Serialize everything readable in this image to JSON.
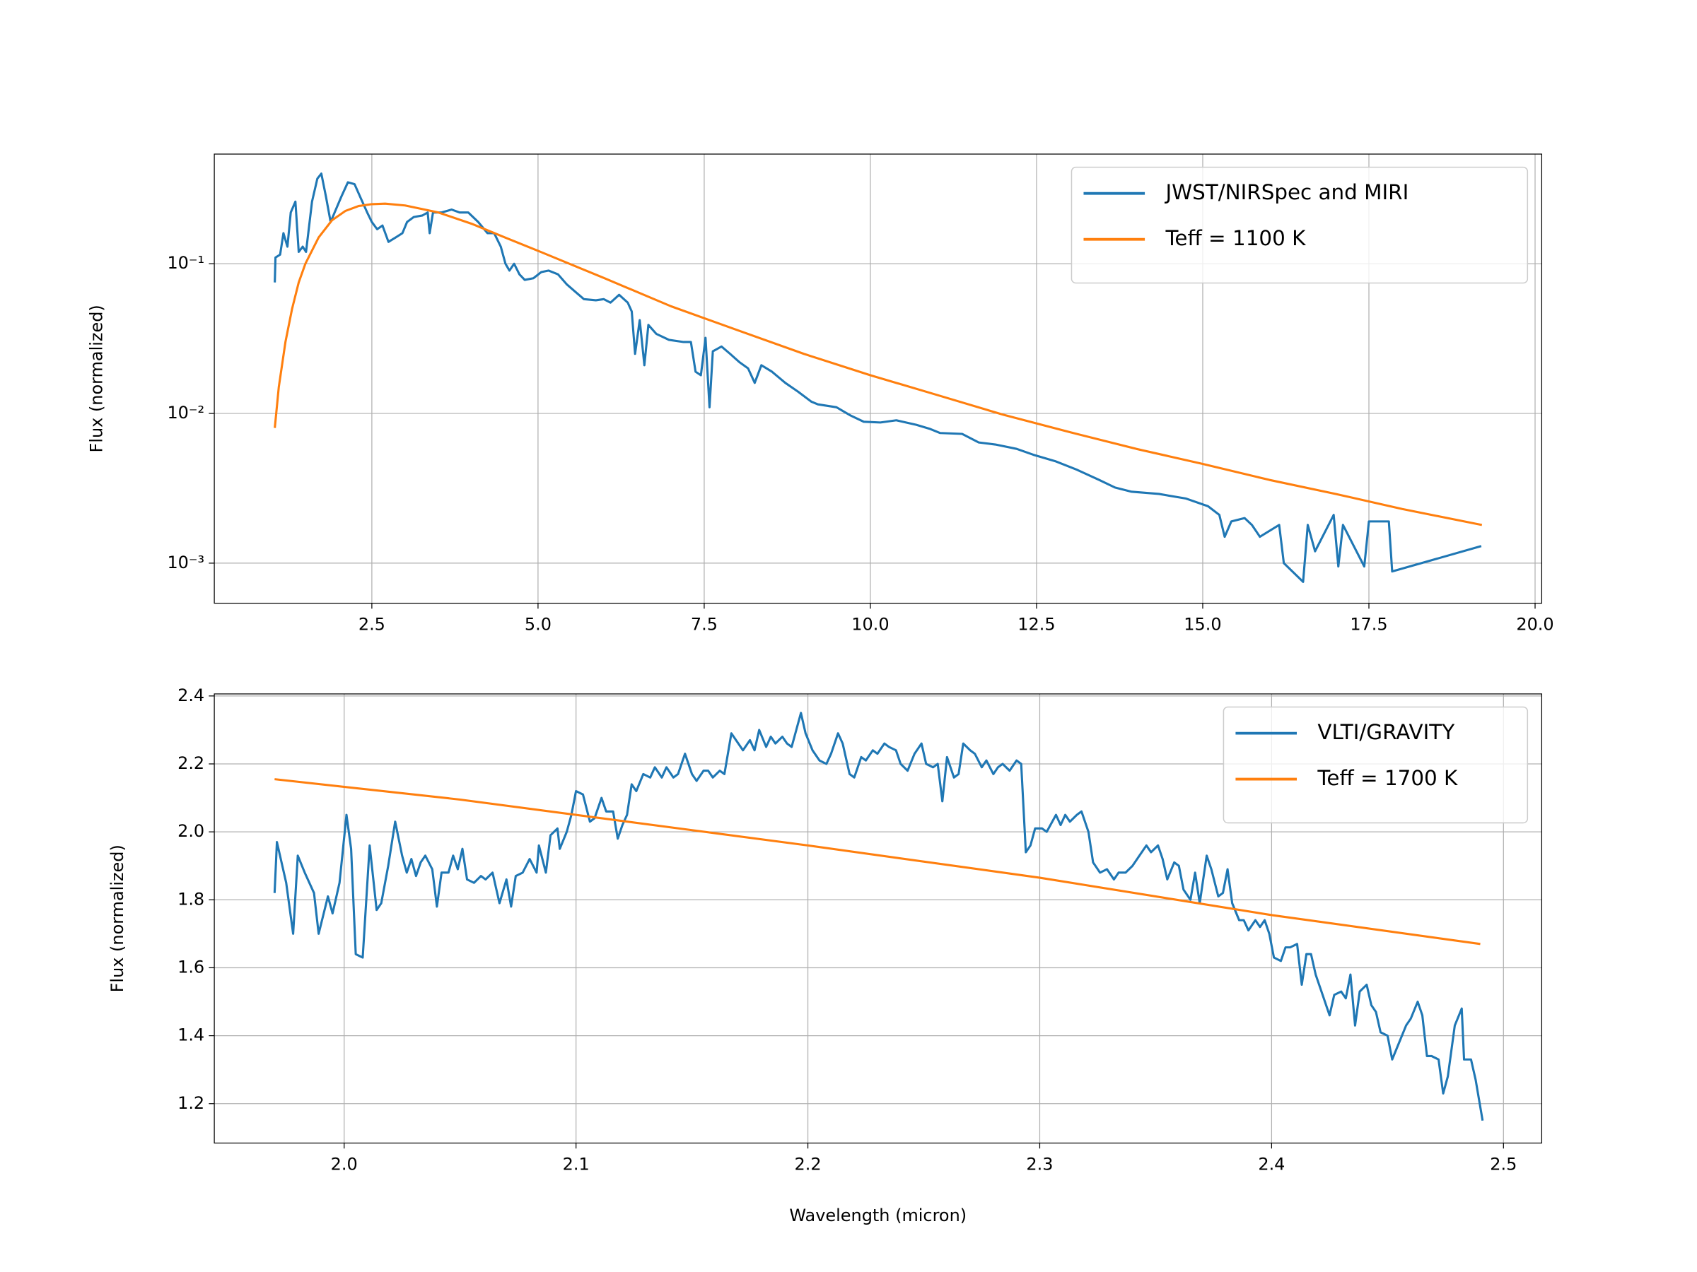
{
  "chart_data": [
    {
      "type": "line",
      "ylabel": "Flux (normalized)",
      "log_y": true,
      "grid": true,
      "legend": "upper right",
      "xlim": [
        0.13,
        20.1
      ],
      "ylim": [
        0.00054,
        0.54
      ],
      "xticks": [
        2.5,
        {
          "value": 5,
          "label": "5.0"
        },
        7.5,
        {
          "value": 10,
          "label": "10.0"
        },
        12.5,
        {
          "value": 15,
          "label": "15.0"
        },
        17.5,
        {
          "value": 20,
          "label": "20.0"
        }
      ],
      "yticks": [
        {
          "value": 0.001,
          "label": "10⁻³"
        },
        {
          "value": 0.01,
          "label": "10⁻²"
        },
        {
          "value": 0.1,
          "label": "10⁻¹"
        }
      ],
      "series": [
        {
          "name": "JWST/NIRSpec and MIRI",
          "color": "#1f77b4",
          "x": [
            1.04,
            1.05,
            1.12,
            1.17,
            1.23,
            1.28,
            1.35,
            1.4,
            1.46,
            1.51,
            1.6,
            1.68,
            1.74,
            1.81,
            1.88,
            1.94,
            2.04,
            2.14,
            2.24,
            2.34,
            2.43,
            2.5,
            2.58,
            2.66,
            2.75,
            2.86,
            2.96,
            3.03,
            3.13,
            3.26,
            3.34,
            3.37,
            3.42,
            3.55,
            3.7,
            3.82,
            3.95,
            4.1,
            4.24,
            4.34,
            4.44,
            4.51,
            4.57,
            4.64,
            4.72,
            4.8,
            4.93,
            5.05,
            5.16,
            5.3,
            5.43,
            5.56,
            5.69,
            5.87,
            5.99,
            6.09,
            6.22,
            6.35,
            6.41,
            6.46,
            6.53,
            6.6,
            6.66,
            6.78,
            6.97,
            7.19,
            7.3,
            7.37,
            7.45,
            7.52,
            7.58,
            7.63,
            7.76,
            7.89,
            8.03,
            8.16,
            8.26,
            8.36,
            8.52,
            8.72,
            8.91,
            9.11,
            9.21,
            9.49,
            9.7,
            9.9,
            10.15,
            10.39,
            10.69,
            10.89,
            11.05,
            11.38,
            11.63,
            11.88,
            12.2,
            12.45,
            12.78,
            13.11,
            13.44,
            13.68,
            13.93,
            14.34,
            14.75,
            15.08,
            15.25,
            15.33,
            15.43,
            15.63,
            15.74,
            15.86,
            16.15,
            16.22,
            16.51,
            16.58,
            16.69,
            16.97,
            17.04,
            17.11,
            17.43,
            17.5,
            17.8,
            17.85,
            19.19
          ],
          "values": [
            0.075,
            0.11,
            0.115,
            0.16,
            0.13,
            0.22,
            0.26,
            0.12,
            0.13,
            0.12,
            0.26,
            0.37,
            0.4,
            0.28,
            0.19,
            0.22,
            0.28,
            0.35,
            0.34,
            0.27,
            0.22,
            0.19,
            0.17,
            0.18,
            0.14,
            0.15,
            0.16,
            0.19,
            0.205,
            0.21,
            0.22,
            0.16,
            0.22,
            0.22,
            0.23,
            0.22,
            0.22,
            0.19,
            0.16,
            0.16,
            0.13,
            0.1,
            0.09,
            0.1,
            0.085,
            0.078,
            0.08,
            0.088,
            0.09,
            0.085,
            0.073,
            0.065,
            0.058,
            0.057,
            0.058,
            0.055,
            0.062,
            0.055,
            0.048,
            0.025,
            0.042,
            0.021,
            0.039,
            0.034,
            0.031,
            0.03,
            0.03,
            0.019,
            0.018,
            0.032,
            0.011,
            0.026,
            0.028,
            0.025,
            0.022,
            0.02,
            0.016,
            0.021,
            0.019,
            0.016,
            0.014,
            0.012,
            0.0115,
            0.011,
            0.0097,
            0.0088,
            0.0087,
            0.009,
            0.0084,
            0.0079,
            0.0074,
            0.0073,
            0.0064,
            0.0062,
            0.0058,
            0.0053,
            0.0048,
            0.0042,
            0.0036,
            0.0032,
            0.003,
            0.0029,
            0.0027,
            0.0024,
            0.0021,
            0.0015,
            0.0019,
            0.002,
            0.0018,
            0.0015,
            0.0018,
            0.001,
            0.00075,
            0.0018,
            0.0012,
            0.0021,
            0.00095,
            0.0018,
            0.00095,
            0.0019,
            0.0019,
            0.00088,
            0.0013
          ]
        },
        {
          "name": "Teff = 1100 K",
          "color": "#ff7f0e",
          "x": [
            1.04,
            1.1,
            1.2,
            1.3,
            1.4,
            1.5,
            1.7,
            1.9,
            2.1,
            2.3,
            2.5,
            2.7,
            3.0,
            3.5,
            4.0,
            4.5,
            5.0,
            6.0,
            7.0,
            8.0,
            9.0,
            10.0,
            11.0,
            12.0,
            13.0,
            14.0,
            15.0,
            16.0,
            17.0,
            18.0,
            19.2
          ],
          "values": [
            0.008,
            0.015,
            0.03,
            0.05,
            0.075,
            0.1,
            0.15,
            0.195,
            0.225,
            0.243,
            0.25,
            0.252,
            0.245,
            0.22,
            0.185,
            0.15,
            0.122,
            0.08,
            0.052,
            0.036,
            0.025,
            0.018,
            0.0133,
            0.0098,
            0.0075,
            0.0058,
            0.0046,
            0.0036,
            0.0029,
            0.0023,
            0.0018
          ]
        }
      ]
    },
    {
      "type": "line",
      "xlabel": "Wavelength (micron)",
      "ylabel": "Flux (normalized)",
      "log_y": false,
      "grid": true,
      "legend": "upper right",
      "xlim": [
        1.944,
        2.5165
      ],
      "ylim": [
        1.084,
        2.406
      ],
      "xticks": [
        {
          "value": 2,
          "label": "2.0"
        },
        2.1,
        2.2,
        2.3,
        2.4,
        2.5
      ],
      "yticks": [
        1.2,
        1.4,
        1.6,
        1.8,
        {
          "value": 2,
          "label": "2.0"
        },
        2.2,
        2.4
      ],
      "series": [
        {
          "name": "VLTI/GRAVITY",
          "color": "#1f77b4",
          "x": [
            1.97,
            1.971,
            1.975,
            1.978,
            1.98,
            1.983,
            1.987,
            1.989,
            1.993,
            1.995,
            1.998,
            2.001,
            2.003,
            2.005,
            2.008,
            2.011,
            2.014,
            2.016,
            2.019,
            2.022,
            2.025,
            2.027,
            2.029,
            2.031,
            2.033,
            2.035,
            2.038,
            2.04,
            2.042,
            2.045,
            2.047,
            2.049,
            2.051,
            2.053,
            2.056,
            2.059,
            2.061,
            2.064,
            2.067,
            2.07,
            2.072,
            2.074,
            2.077,
            2.08,
            2.083,
            2.084,
            2.087,
            2.089,
            2.092,
            2.093,
            2.096,
            2.098,
            2.1,
            2.103,
            2.106,
            2.108,
            2.111,
            2.113,
            2.116,
            2.118,
            2.12,
            2.122,
            2.124,
            2.126,
            2.129,
            2.132,
            2.134,
            2.137,
            2.139,
            2.142,
            2.144,
            2.147,
            2.15,
            2.152,
            2.155,
            2.157,
            2.159,
            2.162,
            2.164,
            2.167,
            2.17,
            2.172,
            2.175,
            2.177,
            2.179,
            2.182,
            2.184,
            2.186,
            2.189,
            2.191,
            2.193,
            2.197,
            2.199,
            2.202,
            2.205,
            2.208,
            2.21,
            2.213,
            2.215,
            2.218,
            2.22,
            2.223,
            2.225,
            2.228,
            2.23,
            2.233,
            2.235,
            2.238,
            2.24,
            2.243,
            2.246,
            2.249,
            2.251,
            2.254,
            2.256,
            2.258,
            2.26,
            2.263,
            2.265,
            2.267,
            2.27,
            2.272,
            2.275,
            2.277,
            2.28,
            2.282,
            2.284,
            2.287,
            2.29,
            2.292,
            2.294,
            2.296,
            2.298,
            2.301,
            2.303,
            2.307,
            2.309,
            2.311,
            2.313,
            2.316,
            2.318,
            2.321,
            2.323,
            2.326,
            2.329,
            2.332,
            2.334,
            2.337,
            2.34,
            2.343,
            2.346,
            2.348,
            2.351,
            2.353,
            2.355,
            2.358,
            2.36,
            2.362,
            2.365,
            2.367,
            2.369,
            2.372,
            2.374,
            2.377,
            2.379,
            2.381,
            2.383,
            2.386,
            2.388,
            2.39,
            2.393,
            2.395,
            2.397,
            2.399,
            2.401,
            2.404,
            2.406,
            2.408,
            2.411,
            2.413,
            2.415,
            2.417,
            2.419,
            2.422,
            2.425,
            2.427,
            2.43,
            2.432,
            2.434,
            2.436,
            2.438,
            2.441,
            2.443,
            2.445,
            2.447,
            2.45,
            2.452,
            2.455,
            2.458,
            2.46,
            2.463,
            2.465,
            2.467,
            2.469,
            2.472,
            2.474,
            2.476,
            2.479,
            2.482,
            2.483,
            2.486,
            2.488,
            2.491
          ],
          "values": [
            1.82,
            1.97,
            1.85,
            1.7,
            1.93,
            1.88,
            1.82,
            1.7,
            1.81,
            1.76,
            1.85,
            2.05,
            1.95,
            1.64,
            1.63,
            1.96,
            1.77,
            1.79,
            1.9,
            2.03,
            1.93,
            1.88,
            1.92,
            1.87,
            1.91,
            1.93,
            1.89,
            1.78,
            1.88,
            1.88,
            1.93,
            1.89,
            1.95,
            1.86,
            1.85,
            1.87,
            1.86,
            1.88,
            1.79,
            1.86,
            1.78,
            1.87,
            1.88,
            1.92,
            1.88,
            1.96,
            1.88,
            1.99,
            2.01,
            1.95,
            2.0,
            2.05,
            2.12,
            2.11,
            2.03,
            2.04,
            2.1,
            2.06,
            2.06,
            1.98,
            2.02,
            2.05,
            2.14,
            2.12,
            2.17,
            2.16,
            2.19,
            2.16,
            2.19,
            2.16,
            2.17,
            2.23,
            2.17,
            2.15,
            2.18,
            2.18,
            2.16,
            2.18,
            2.17,
            2.29,
            2.26,
            2.24,
            2.27,
            2.24,
            2.3,
            2.25,
            2.28,
            2.26,
            2.28,
            2.26,
            2.25,
            2.35,
            2.29,
            2.24,
            2.21,
            2.2,
            2.23,
            2.29,
            2.26,
            2.17,
            2.16,
            2.22,
            2.21,
            2.24,
            2.23,
            2.26,
            2.25,
            2.24,
            2.2,
            2.18,
            2.23,
            2.26,
            2.2,
            2.19,
            2.2,
            2.09,
            2.22,
            2.16,
            2.17,
            2.26,
            2.24,
            2.23,
            2.19,
            2.21,
            2.17,
            2.19,
            2.2,
            2.18,
            2.21,
            2.2,
            1.94,
            1.96,
            2.01,
            2.01,
            2.0,
            2.05,
            2.02,
            2.05,
            2.03,
            2.05,
            2.06,
            2.0,
            1.91,
            1.88,
            1.89,
            1.86,
            1.88,
            1.88,
            1.9,
            1.93,
            1.96,
            1.94,
            1.96,
            1.92,
            1.86,
            1.91,
            1.9,
            1.83,
            1.8,
            1.88,
            1.79,
            1.93,
            1.89,
            1.81,
            1.82,
            1.89,
            1.79,
            1.74,
            1.74,
            1.71,
            1.74,
            1.72,
            1.74,
            1.7,
            1.63,
            1.62,
            1.66,
            1.66,
            1.67,
            1.55,
            1.64,
            1.64,
            1.58,
            1.52,
            1.46,
            1.52,
            1.53,
            1.51,
            1.58,
            1.43,
            1.53,
            1.55,
            1.49,
            1.47,
            1.41,
            1.4,
            1.33,
            1.38,
            1.43,
            1.45,
            1.5,
            1.46,
            1.34,
            1.34,
            1.33,
            1.23,
            1.28,
            1.43,
            1.48,
            1.33,
            1.33,
            1.27,
            1.15
          ]
        },
        {
          "name": "Teff = 1700 K",
          "color": "#ff7f0e",
          "x": [
            1.97,
            2.05,
            2.15,
            2.2,
            2.3,
            2.4,
            2.49
          ],
          "values": [
            2.155,
            2.095,
            2.005,
            1.96,
            1.865,
            1.755,
            1.67
          ]
        }
      ]
    }
  ]
}
